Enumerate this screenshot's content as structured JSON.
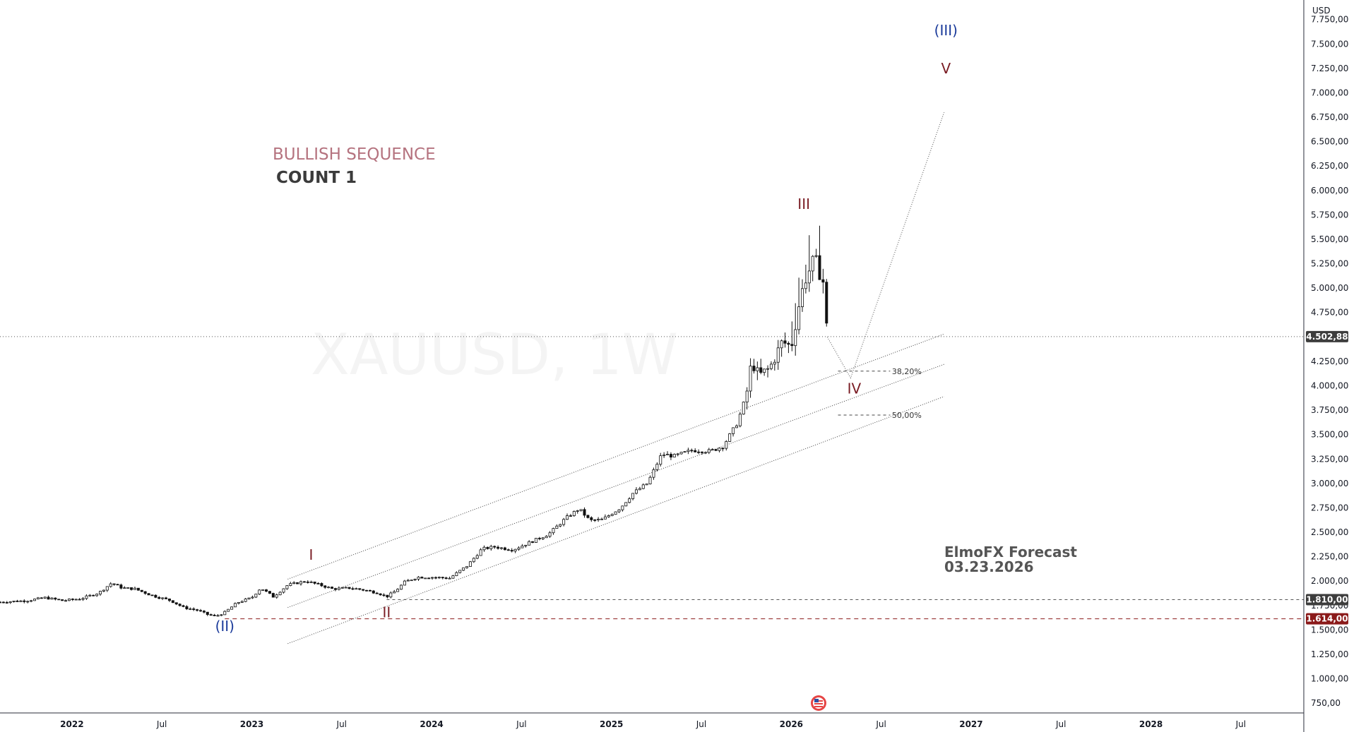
{
  "currency": "USD",
  "watermark": "XAUUSD, 1W",
  "annotations": {
    "title": "BULLISH SEQUENCE",
    "subtitle": "COUNT 1",
    "forecast_line1": "ElmoFX Forecast",
    "forecast_line2": "03.23.2026"
  },
  "colors": {
    "bullish_title": "#b5737f",
    "wave_red": "#7a1c24",
    "wave_blue": "#1a3a9a",
    "price_line_badge": "#3d3d3d",
    "support_badge": "#8b1a1a"
  },
  "price_labels": {
    "current": "4.502,88",
    "level_a": "1.810,00",
    "level_b": "1.614,00"
  },
  "chart_data": {
    "type": "candlestick",
    "symbol": "XAUUSD",
    "timeframe": "1W",
    "y_ticks": [
      "750,00",
      "1.000,00",
      "1.250,00",
      "1.500,00",
      "1.750,00",
      "2.000,00",
      "2.250,00",
      "2.500,00",
      "2.750,00",
      "3.000,00",
      "3.250,00",
      "3.500,00",
      "3.750,00",
      "4.000,00",
      "4.250,00",
      "4.500,00",
      "4.750,00",
      "5.000,00",
      "5.250,00",
      "5.500,00",
      "5.750,00",
      "6.000,00",
      "6.250,00",
      "6.500,00",
      "6.750,00",
      "7.000,00",
      "7.250,00",
      "7.500,00",
      "7.750,00"
    ],
    "y_tick_values": [
      750,
      1000,
      1250,
      1500,
      1750,
      2000,
      2250,
      2500,
      2750,
      3000,
      3250,
      3500,
      3750,
      4000,
      4250,
      4500,
      4750,
      5000,
      5250,
      5500,
      5750,
      6000,
      6250,
      6500,
      6750,
      7000,
      7250,
      7500,
      7750
    ],
    "ylim": [
      650,
      7950
    ],
    "xlim": [
      2021.6,
      2028.85
    ],
    "x_ticks": [
      {
        "label": "2022",
        "value": 2022.0,
        "bold": true
      },
      {
        "label": "Jul",
        "value": 2022.5,
        "bold": false
      },
      {
        "label": "2023",
        "value": 2023.0,
        "bold": true
      },
      {
        "label": "Jul",
        "value": 2023.5,
        "bold": false
      },
      {
        "label": "2024",
        "value": 2024.0,
        "bold": true
      },
      {
        "label": "Jul",
        "value": 2024.5,
        "bold": false
      },
      {
        "label": "2025",
        "value": 2025.0,
        "bold": true
      },
      {
        "label": "Jul",
        "value": 2025.5,
        "bold": false
      },
      {
        "label": "2026",
        "value": 2026.0,
        "bold": true
      },
      {
        "label": "Jul",
        "value": 2026.5,
        "bold": false
      },
      {
        "label": "2027",
        "value": 2027.0,
        "bold": true
      },
      {
        "label": "Jul",
        "value": 2027.5,
        "bold": false
      },
      {
        "label": "2028",
        "value": 2028.0,
        "bold": true
      },
      {
        "label": "Jul",
        "value": 2028.5,
        "bold": false
      }
    ],
    "price_path": [
      [
        2021.6,
        1785
      ],
      [
        2021.75,
        1800
      ],
      [
        2021.85,
        1830
      ],
      [
        2021.95,
        1800
      ],
      [
        2022.05,
        1820
      ],
      [
        2022.15,
        1880
      ],
      [
        2022.22,
        1980
      ],
      [
        2022.28,
        1930
      ],
      [
        2022.35,
        1920
      ],
      [
        2022.45,
        1850
      ],
      [
        2022.55,
        1800
      ],
      [
        2022.62,
        1730
      ],
      [
        2022.7,
        1700
      ],
      [
        2022.75,
        1660
      ],
      [
        2022.8,
        1640
      ],
      [
        2022.85,
        1680
      ],
      [
        2022.92,
        1780
      ],
      [
        2023.0,
        1830
      ],
      [
        2023.05,
        1930
      ],
      [
        2023.12,
        1840
      ],
      [
        2023.2,
        1960
      ],
      [
        2023.3,
        2000
      ],
      [
        2023.38,
        1960
      ],
      [
        2023.45,
        1920
      ],
      [
        2023.55,
        1930
      ],
      [
        2023.62,
        1910
      ],
      [
        2023.7,
        1880
      ],
      [
        2023.75,
        1840
      ],
      [
        2023.8,
        1900
      ],
      [
        2023.85,
        1990
      ],
      [
        2023.92,
        2040
      ],
      [
        2024.0,
        2040
      ],
      [
        2024.1,
        2030
      ],
      [
        2024.2,
        2160
      ],
      [
        2024.28,
        2330
      ],
      [
        2024.35,
        2350
      ],
      [
        2024.45,
        2320
      ],
      [
        2024.55,
        2400
      ],
      [
        2024.65,
        2480
      ],
      [
        2024.75,
        2650
      ],
      [
        2024.82,
        2740
      ],
      [
        2024.88,
        2620
      ],
      [
        2024.95,
        2630
      ],
      [
        2025.05,
        2750
      ],
      [
        2025.12,
        2900
      ],
      [
        2025.2,
        3000
      ],
      [
        2025.28,
        3300
      ],
      [
        2025.35,
        3280
      ],
      [
        2025.45,
        3340
      ],
      [
        2025.55,
        3330
      ],
      [
        2025.62,
        3380
      ],
      [
        2025.7,
        3620
      ],
      [
        2025.75,
        3900
      ],
      [
        2025.78,
        4250
      ],
      [
        2025.82,
        4100
      ],
      [
        2025.88,
        4180
      ],
      [
        2025.95,
        4450
      ],
      [
        2026.0,
        4400
      ],
      [
        2026.05,
        4900
      ],
      [
        2026.08,
        5100
      ],
      [
        2026.13,
        5300
      ],
      [
        2026.18,
        5050
      ],
      [
        2026.2,
        4500
      ]
    ],
    "projection_path": [
      [
        2026.2,
        4500
      ],
      [
        2026.33,
        4080
      ],
      [
        2026.85,
        6800
      ]
    ],
    "wave_labels": [
      {
        "text": "(II)",
        "x": 2022.85,
        "y": 1490,
        "color": "wave_blue"
      },
      {
        "text": "I",
        "x": 2023.33,
        "y": 2220,
        "color": "wave_red"
      },
      {
        "text": "II",
        "x": 2023.75,
        "y": 1630,
        "color": "wave_red"
      },
      {
        "text": "III",
        "x": 2026.07,
        "y": 5810,
        "color": "wave_red"
      },
      {
        "text": "IV",
        "x": 2026.35,
        "y": 3920,
        "color": "wave_red"
      },
      {
        "text": "V",
        "x": 2026.86,
        "y": 7200,
        "color": "wave_red"
      },
      {
        "text": "(III)",
        "x": 2026.86,
        "y": 7590,
        "color": "wave_blue"
      }
    ],
    "fib_levels": [
      {
        "label": "38,20%",
        "price": 4150
      },
      {
        "label": "50,00%",
        "price": 3700
      }
    ],
    "horizontal_levels": [
      4502.88,
      1810,
      1614
    ],
    "channel_lines": [
      {
        "x1": 2023.2,
        "y1": 2020,
        "x2": 2026.85,
        "y2": 4530
      },
      {
        "x1": 2023.2,
        "y1": 1730,
        "x2": 2026.85,
        "y2": 4220
      },
      {
        "x1": 2023.2,
        "y1": 1360,
        "x2": 2026.85,
        "y2": 3890
      }
    ]
  }
}
